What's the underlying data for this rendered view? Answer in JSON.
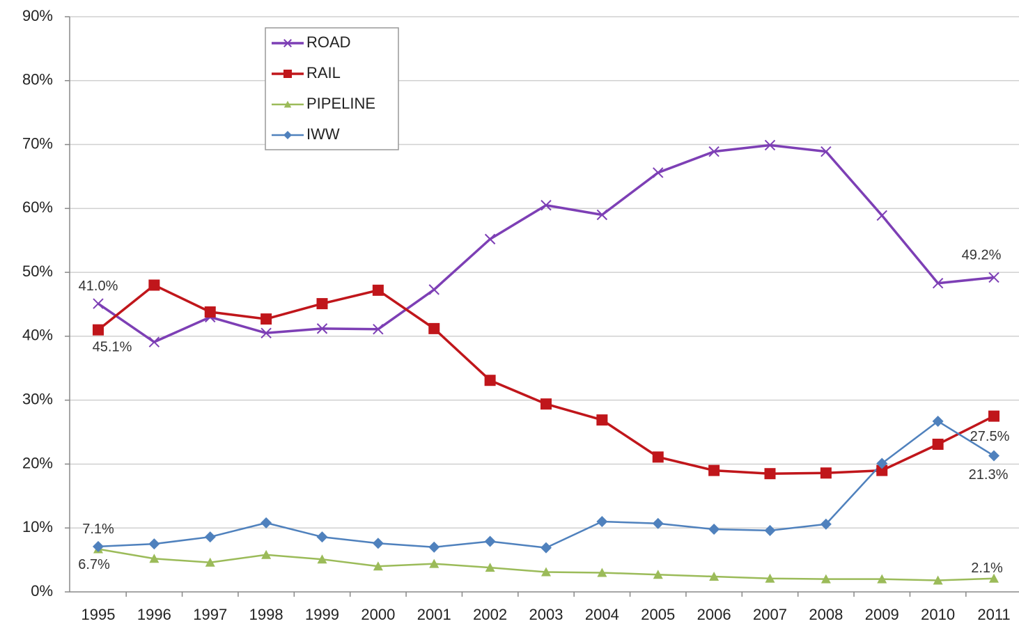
{
  "chart_data": {
    "type": "line",
    "categories": [
      "1995",
      "1996",
      "1997",
      "1998",
      "1999",
      "2000",
      "2001",
      "2002",
      "2003",
      "2004",
      "2005",
      "2006",
      "2007",
      "2008",
      "2009",
      "2010",
      "2011"
    ],
    "ylim": [
      0,
      90
    ],
    "yticks": [
      {
        "value": 0,
        "label": "0%"
      },
      {
        "value": 10,
        "label": "10%"
      },
      {
        "value": 20,
        "label": "20%"
      },
      {
        "value": 30,
        "label": "30%"
      },
      {
        "value": 40,
        "label": "40%"
      },
      {
        "value": 50,
        "label": "50%"
      },
      {
        "value": 60,
        "label": "60%"
      },
      {
        "value": 70,
        "label": "70%"
      },
      {
        "value": 80,
        "label": "80%"
      },
      {
        "value": 90,
        "label": "90%"
      }
    ],
    "grid": true,
    "legend": "upper left",
    "series": [
      {
        "name": "ROAD",
        "color": "#7d3fb5",
        "marker": "x",
        "values": [
          45.1,
          39.1,
          43.0,
          40.5,
          41.2,
          41.1,
          47.3,
          55.2,
          60.5,
          59.0,
          65.6,
          68.9,
          69.9,
          68.9,
          58.9,
          48.3,
          49.2
        ],
        "value_labels": [
          "45.1%",
          null,
          null,
          null,
          null,
          null,
          null,
          null,
          null,
          null,
          null,
          null,
          null,
          null,
          null,
          null,
          "49.2%"
        ]
      },
      {
        "name": "RAIL",
        "color": "#c0161b",
        "marker": "square",
        "values": [
          41.0,
          48.0,
          43.8,
          42.7,
          45.1,
          47.2,
          41.2,
          33.1,
          29.4,
          26.9,
          21.1,
          19.0,
          18.5,
          18.6,
          19.0,
          23.1,
          27.5
        ],
        "value_labels": [
          "41.0%",
          null,
          null,
          null,
          null,
          null,
          null,
          null,
          null,
          null,
          null,
          null,
          null,
          null,
          null,
          null,
          "27.5%"
        ]
      },
      {
        "name": "PIPELINE",
        "color": "#9bbb59",
        "marker": "triangle",
        "values": [
          6.7,
          5.2,
          4.6,
          5.8,
          5.1,
          4.0,
          4.4,
          3.8,
          3.1,
          3.0,
          2.7,
          2.4,
          2.1,
          2.0,
          2.0,
          1.8,
          2.1
        ],
        "value_labels": [
          "6.7%",
          null,
          null,
          null,
          null,
          null,
          null,
          null,
          null,
          null,
          null,
          null,
          null,
          null,
          null,
          null,
          "2.1%"
        ]
      },
      {
        "name": "IWW",
        "color": "#4f81bd",
        "marker": "diamond",
        "values": [
          7.1,
          7.5,
          8.6,
          10.8,
          8.6,
          7.6,
          7.0,
          7.9,
          6.9,
          11.0,
          10.7,
          9.8,
          9.6,
          10.6,
          20.1,
          26.7,
          21.3
        ],
        "value_labels": [
          "7.1%",
          null,
          null,
          null,
          null,
          null,
          null,
          null,
          null,
          null,
          null,
          null,
          null,
          null,
          null,
          null,
          "21.3%"
        ]
      }
    ]
  }
}
